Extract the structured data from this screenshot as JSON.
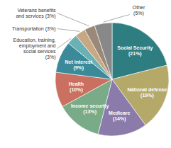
{
  "chart_data": {
    "type": "pie",
    "categories": [
      "Social Security\n(21%)",
      "National defense\n(19%)",
      "Medicare\n(14%)",
      "Income security\n(13%)",
      "Health\n(10%)",
      "Net interest\n(9%)",
      "Education, training,\nemployment and\nsocial services\n(3%)",
      "Transportation (3%)",
      "Veterans benefits\nand services (3%)",
      "Other\n(5%)"
    ],
    "values": [
      21,
      19,
      14,
      13,
      10,
      9,
      3,
      3,
      3,
      5
    ],
    "colors": [
      "#2e7d80",
      "#b5a96a",
      "#8b7baa",
      "#7aab88",
      "#c97060",
      "#3a8a9a",
      "#6ab0b5",
      "#c8a882",
      "#9a8878",
      "#888888"
    ]
  }
}
